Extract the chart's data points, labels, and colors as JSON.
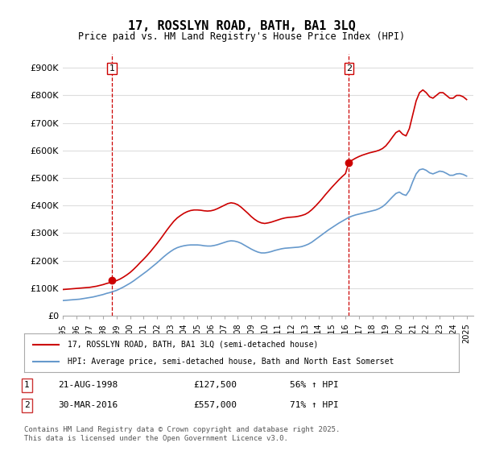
{
  "title": "17, ROSSLYN ROAD, BATH, BA1 3LQ",
  "subtitle": "Price paid vs. HM Land Registry's House Price Index (HPI)",
  "ylabel_ticks": [
    "£0",
    "£100K",
    "£200K",
    "£300K",
    "£400K",
    "£500K",
    "£600K",
    "£700K",
    "£800K",
    "£900K"
  ],
  "ytick_vals": [
    0,
    100000,
    200000,
    300000,
    400000,
    500000,
    600000,
    700000,
    800000,
    900000
  ],
  "ylim": [
    0,
    950000
  ],
  "xlim_start": 1995,
  "xlim_end": 2025.5,
  "red_color": "#cc0000",
  "blue_color": "#6699cc",
  "background_color": "#ffffff",
  "grid_color": "#dddddd",
  "marker1_year": 1998.64,
  "marker1_value": 127500,
  "marker1_label": "1",
  "marker2_year": 2016.25,
  "marker2_value": 557000,
  "marker2_label": "2",
  "legend_line1": "17, ROSSLYN ROAD, BATH, BA1 3LQ (semi-detached house)",
  "legend_line2": "HPI: Average price, semi-detached house, Bath and North East Somerset",
  "table_row1": "1    21-AUG-1998         £127,500         56% ↑ HPI",
  "table_row2": "2    30-MAR-2016         £557,000         71% ↑ HPI",
  "footnote": "Contains HM Land Registry data © Crown copyright and database right 2025.\nThis data is licensed under the Open Government Licence v3.0.",
  "red_line_x": [
    1995.0,
    1995.25,
    1995.5,
    1995.75,
    1996.0,
    1996.25,
    1996.5,
    1996.75,
    1997.0,
    1997.25,
    1997.5,
    1997.75,
    1998.0,
    1998.25,
    1998.5,
    1998.75,
    1999.0,
    1999.25,
    1999.5,
    1999.75,
    2000.0,
    2000.25,
    2000.5,
    2000.75,
    2001.0,
    2001.25,
    2001.5,
    2001.75,
    2002.0,
    2002.25,
    2002.5,
    2002.75,
    2003.0,
    2003.25,
    2003.5,
    2003.75,
    2004.0,
    2004.25,
    2004.5,
    2004.75,
    2005.0,
    2005.25,
    2005.5,
    2005.75,
    2006.0,
    2006.25,
    2006.5,
    2006.75,
    2007.0,
    2007.25,
    2007.5,
    2007.75,
    2008.0,
    2008.25,
    2008.5,
    2008.75,
    2009.0,
    2009.25,
    2009.5,
    2009.75,
    2010.0,
    2010.25,
    2010.5,
    2010.75,
    2011.0,
    2011.25,
    2011.5,
    2011.75,
    2012.0,
    2012.25,
    2012.5,
    2012.75,
    2013.0,
    2013.25,
    2013.5,
    2013.75,
    2014.0,
    2014.25,
    2014.5,
    2014.75,
    2015.0,
    2015.25,
    2015.5,
    2015.75,
    2016.0,
    2016.25,
    2016.5,
    2016.75,
    2017.0,
    2017.25,
    2017.5,
    2017.75,
    2018.0,
    2018.25,
    2018.5,
    2018.75,
    2019.0,
    2019.25,
    2019.5,
    2019.75,
    2020.0,
    2020.25,
    2020.5,
    2020.75,
    2021.0,
    2021.25,
    2021.5,
    2021.75,
    2022.0,
    2022.25,
    2022.5,
    2022.75,
    2023.0,
    2023.25,
    2023.5,
    2023.75,
    2024.0,
    2024.25,
    2024.5,
    2024.75,
    2025.0
  ],
  "red_line_y": [
    95000,
    96000,
    97000,
    98000,
    99000,
    100000,
    101000,
    102000,
    103000,
    105000,
    107000,
    110000,
    113000,
    117000,
    120000,
    124000,
    127500,
    133000,
    140000,
    148000,
    157000,
    168000,
    180000,
    193000,
    205000,
    218000,
    232000,
    247000,
    262000,
    278000,
    295000,
    312000,
    328000,
    343000,
    355000,
    364000,
    372000,
    378000,
    382000,
    384000,
    384000,
    383000,
    381000,
    380000,
    381000,
    384000,
    389000,
    395000,
    401000,
    407000,
    410000,
    408000,
    403000,
    394000,
    383000,
    372000,
    360000,
    350000,
    342000,
    337000,
    335000,
    337000,
    340000,
    344000,
    348000,
    352000,
    355000,
    357000,
    358000,
    359000,
    361000,
    364000,
    368000,
    375000,
    385000,
    397000,
    410000,
    424000,
    439000,
    453000,
    467000,
    480000,
    493000,
    505000,
    516000,
    557000,
    565000,
    572000,
    578000,
    583000,
    587000,
    591000,
    594000,
    597000,
    601000,
    607000,
    617000,
    632000,
    649000,
    665000,
    672000,
    659000,
    653000,
    680000,
    730000,
    780000,
    810000,
    820000,
    810000,
    795000,
    790000,
    800000,
    810000,
    810000,
    800000,
    790000,
    790000,
    800000,
    800000,
    795000,
    785000
  ],
  "blue_line_x": [
    1995.0,
    1995.25,
    1995.5,
    1995.75,
    1996.0,
    1996.25,
    1996.5,
    1996.75,
    1997.0,
    1997.25,
    1997.5,
    1997.75,
    1998.0,
    1998.25,
    1998.5,
    1998.75,
    1999.0,
    1999.25,
    1999.5,
    1999.75,
    2000.0,
    2000.25,
    2000.5,
    2000.75,
    2001.0,
    2001.25,
    2001.5,
    2001.75,
    2002.0,
    2002.25,
    2002.5,
    2002.75,
    2003.0,
    2003.25,
    2003.5,
    2003.75,
    2004.0,
    2004.25,
    2004.5,
    2004.75,
    2005.0,
    2005.25,
    2005.5,
    2005.75,
    2006.0,
    2006.25,
    2006.5,
    2006.75,
    2007.0,
    2007.25,
    2007.5,
    2007.75,
    2008.0,
    2008.25,
    2008.5,
    2008.75,
    2009.0,
    2009.25,
    2009.5,
    2009.75,
    2010.0,
    2010.25,
    2010.5,
    2010.75,
    2011.0,
    2011.25,
    2011.5,
    2011.75,
    2012.0,
    2012.25,
    2012.5,
    2012.75,
    2013.0,
    2013.25,
    2013.5,
    2013.75,
    2014.0,
    2014.25,
    2014.5,
    2014.75,
    2015.0,
    2015.25,
    2015.5,
    2015.75,
    2016.0,
    2016.25,
    2016.5,
    2016.75,
    2017.0,
    2017.25,
    2017.5,
    2017.75,
    2018.0,
    2018.25,
    2018.5,
    2018.75,
    2019.0,
    2019.25,
    2019.5,
    2019.75,
    2020.0,
    2020.25,
    2020.5,
    2020.75,
    2021.0,
    2021.25,
    2021.5,
    2021.75,
    2022.0,
    2022.25,
    2022.5,
    2022.75,
    2023.0,
    2023.25,
    2023.5,
    2023.75,
    2024.0,
    2024.25,
    2024.5,
    2024.75,
    2025.0
  ],
  "blue_line_y": [
    55000,
    56000,
    57000,
    58000,
    59000,
    60000,
    62000,
    64000,
    66000,
    68000,
    71000,
    74000,
    77000,
    81000,
    84000,
    88000,
    92000,
    98000,
    104000,
    111000,
    118000,
    126000,
    135000,
    144000,
    153000,
    162000,
    172000,
    182000,
    192000,
    203000,
    214000,
    224000,
    233000,
    241000,
    247000,
    251000,
    254000,
    256000,
    257000,
    257000,
    257000,
    256000,
    254000,
    253000,
    253000,
    255000,
    258000,
    262000,
    266000,
    270000,
    272000,
    271000,
    268000,
    263000,
    256000,
    249000,
    242000,
    236000,
    231000,
    228000,
    228000,
    230000,
    233000,
    237000,
    240000,
    243000,
    245000,
    246000,
    247000,
    248000,
    249000,
    251000,
    255000,
    260000,
    267000,
    276000,
    285000,
    294000,
    303000,
    312000,
    320000,
    328000,
    336000,
    343000,
    350000,
    357000,
    362000,
    366000,
    369000,
    372000,
    375000,
    378000,
    381000,
    384000,
    389000,
    396000,
    406000,
    419000,
    432000,
    444000,
    449000,
    441000,
    437000,
    455000,
    487000,
    515000,
    530000,
    533000,
    528000,
    519000,
    515000,
    520000,
    525000,
    523000,
    517000,
    510000,
    510000,
    515000,
    516000,
    513000,
    507000
  ]
}
